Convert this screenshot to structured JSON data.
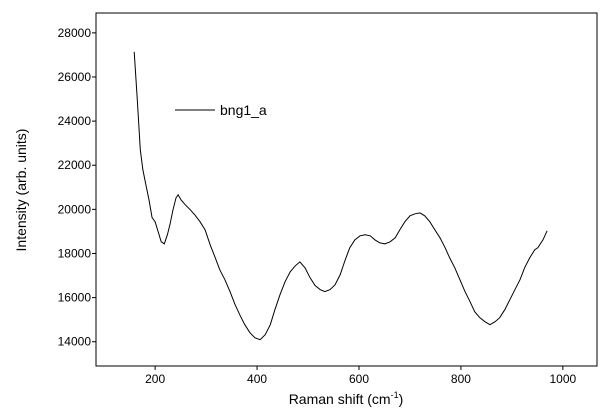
{
  "chart_data": {
    "type": "line",
    "ylabel": "Intensity (arb. units)",
    "xlabel_parts": [
      "Raman shift (cm",
      "-1",
      ")"
    ],
    "xlim": [
      84,
      1067
    ],
    "xticks": [
      200,
      400,
      600,
      800,
      1000
    ],
    "ylim": [
      12900,
      28900
    ],
    "yticks": [
      14000,
      16000,
      18000,
      20000,
      22000,
      24000,
      26000,
      28000
    ],
    "legend": "upper-left",
    "series": [
      {
        "name": "bng1_a",
        "color": "#000000",
        "x": [
          159,
          165,
          171,
          176,
          182,
          188,
          194,
          200,
          206,
          212,
          218,
          224,
          229,
          235,
          241,
          245,
          251,
          259,
          269,
          278,
          288,
          298,
          308,
          318,
          327,
          337,
          347,
          357,
          367,
          376,
          386,
          396,
          406,
          416,
          426,
          435,
          445,
          455,
          465,
          475,
          484,
          494,
          504,
          514,
          524,
          533,
          543,
          553,
          563,
          573,
          582,
          592,
          602,
          612,
          622,
          631,
          641,
          651,
          661,
          671,
          680,
          690,
          700,
          710,
          720,
          729,
          739,
          749,
          759,
          769,
          778,
          788,
          798,
          808,
          818,
          827,
          837,
          847,
          857,
          867,
          876,
          886,
          896,
          906,
          916,
          925,
          935,
          945,
          951,
          961,
          969
        ],
        "values": [
          27140,
          24960,
          22700,
          21790,
          21110,
          20430,
          19620,
          19440,
          18980,
          18530,
          18440,
          18850,
          19300,
          19980,
          20520,
          20660,
          20430,
          20210,
          19980,
          19750,
          19440,
          19070,
          18390,
          17800,
          17260,
          16810,
          16270,
          15680,
          15180,
          14770,
          14410,
          14180,
          14090,
          14320,
          14770,
          15450,
          16130,
          16720,
          17170,
          17440,
          17620,
          17350,
          16900,
          16540,
          16360,
          16270,
          16360,
          16580,
          17030,
          17710,
          18260,
          18620,
          18800,
          18850,
          18800,
          18620,
          18480,
          18440,
          18530,
          18710,
          19070,
          19440,
          19710,
          19800,
          19840,
          19710,
          19440,
          19070,
          18710,
          18260,
          17800,
          17350,
          16810,
          16270,
          15810,
          15360,
          15090,
          14910,
          14770,
          14910,
          15090,
          15450,
          15900,
          16360,
          16810,
          17350,
          17800,
          18170,
          18260,
          18620,
          19030
        ]
      }
    ]
  }
}
